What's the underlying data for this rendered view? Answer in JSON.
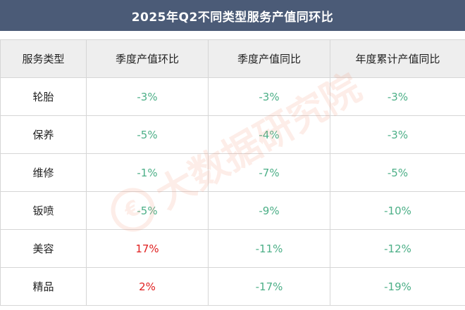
{
  "title": "2025年Q2不同类型服务产值同环比",
  "columns": [
    "服务类型",
    "季度产值环比",
    "季度产值同比",
    "年度累计产值同比"
  ],
  "rows": [
    {
      "type": "轮胎",
      "qoq": "-3%",
      "yoy": "-3%",
      "ytd": "-3%"
    },
    {
      "type": "保养",
      "qoq": "-5%",
      "yoy": "-4%",
      "ytd": "-3%"
    },
    {
      "type": "维修",
      "qoq": "-1%",
      "yoy": "-7%",
      "ytd": "-5%"
    },
    {
      "type": "钣喷",
      "qoq": "-5%",
      "yoy": "-9%",
      "ytd": "-10%"
    },
    {
      "type": "美容",
      "qoq": "17%",
      "yoy": "-11%",
      "ytd": "-12%"
    },
    {
      "type": "精品",
      "qoq": "2%",
      "yoy": "-17%",
      "ytd": "-19%"
    }
  ],
  "watermark": {
    "text": "大数据研究院",
    "logo_glyph": "€"
  },
  "colors": {
    "header_bar": "#4b5b77",
    "negative": "#4caf87",
    "positive": "#e02020",
    "header_row_bg": "#eeeeee"
  }
}
